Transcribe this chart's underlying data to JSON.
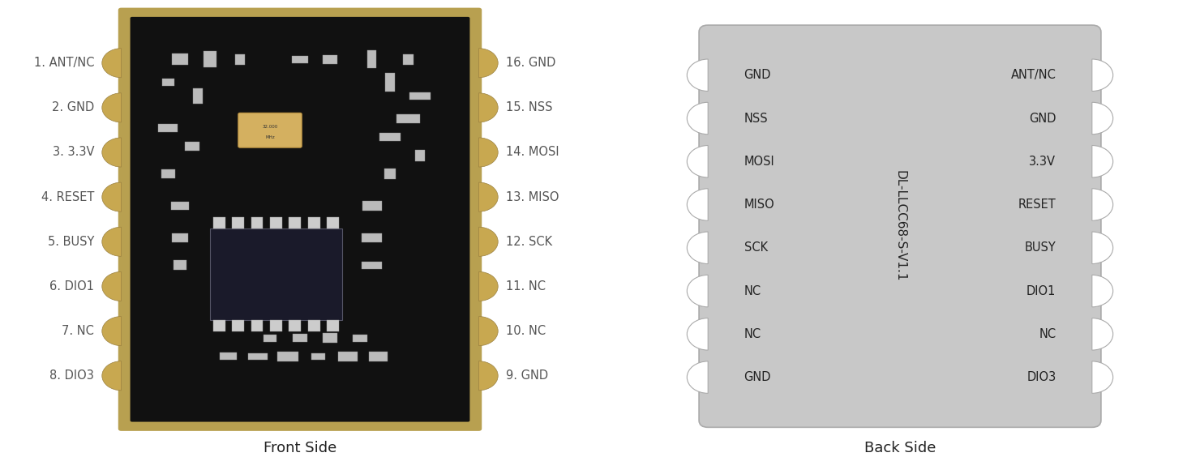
{
  "bg_color": "#ffffff",
  "left_labels": [
    "1. ANT/NC",
    "2. GND",
    "3. 3.3V",
    "4. RESET",
    "5. BUSY",
    "6. DIO1",
    "7. NC",
    "8. DIO3"
  ],
  "right_labels": [
    "16. GND",
    "15. NSS",
    "14. MOSI",
    "13. MISO",
    "12. SCK",
    "11. NC",
    "10. NC",
    "9. GND"
  ],
  "front_caption": "Front Side",
  "back_caption": "Back Side",
  "back_left_pins": [
    "GND",
    "NSS",
    "MOSI",
    "MISO",
    "SCK",
    "NC",
    "NC",
    "GND"
  ],
  "back_right_pins": [
    "ANT/NC",
    "GND",
    "3.3V",
    "RESET",
    "BUSY",
    "DIO1",
    "NC",
    "DIO3"
  ],
  "back_center_text": "DL-LLCC68-S-V1.1",
  "module_bg": "#c8c8c8",
  "module_border": "#aaaaaa",
  "pin_text_color": "#222222",
  "label_text_color": "#555555",
  "caption_color": "#222222",
  "text_fontsize": 10.5,
  "caption_fontsize": 13,
  "pcb_border_color": "#b8a050",
  "pcb_body_color": "#111111",
  "pad_color": "#c8a850"
}
